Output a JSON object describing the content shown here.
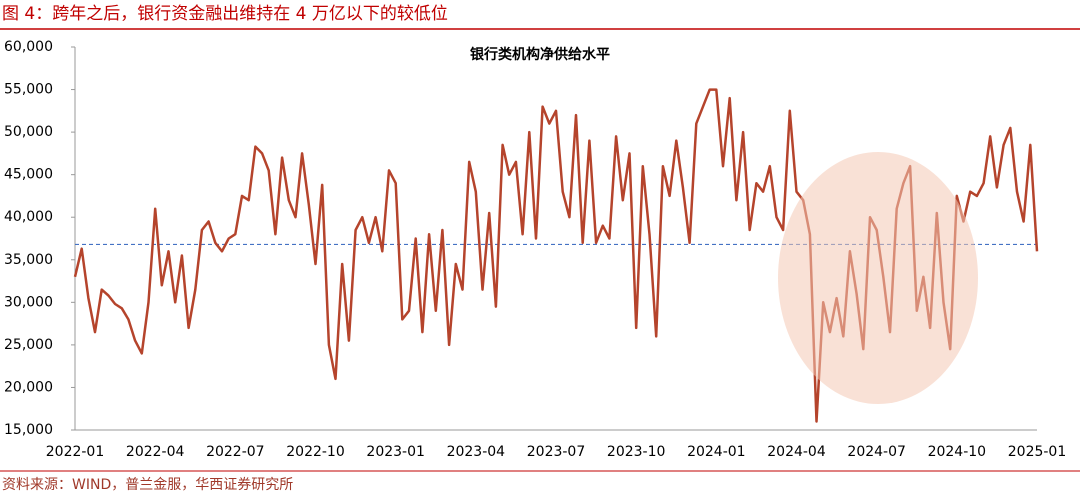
{
  "figure_title": "图 4：跨年之后，银行资金融出维持在 4 万亿以下的较低位",
  "source": "资料来源：WIND，普兰金服，华西证券研究所",
  "chart_data": {
    "type": "line",
    "title": "银行类机构净供给水平",
    "categories": [
      "2022-01",
      null,
      null,
      null,
      null,
      null,
      null,
      null,
      null,
      null,
      null,
      null,
      "2022-04",
      null,
      null,
      null,
      null,
      null,
      null,
      null,
      null,
      null,
      null,
      null,
      "2022-07",
      null,
      null,
      null,
      null,
      null,
      null,
      null,
      null,
      null,
      null,
      null,
      "2022-10",
      null,
      null,
      null,
      null,
      null,
      null,
      null,
      null,
      null,
      null,
      null,
      "2023-01",
      null,
      null,
      null,
      null,
      null,
      null,
      null,
      null,
      null,
      null,
      null,
      "2023-04",
      null,
      null,
      null,
      null,
      null,
      null,
      null,
      null,
      null,
      null,
      null,
      "2023-07",
      null,
      null,
      null,
      null,
      null,
      null,
      null,
      null,
      null,
      null,
      null,
      "2023-10",
      null,
      null,
      null,
      null,
      null,
      null,
      null,
      null,
      null,
      null,
      null,
      "2024-01",
      null,
      null,
      null,
      null,
      null,
      null,
      null,
      null,
      null,
      null,
      null,
      "2024-04",
      null,
      null,
      null,
      null,
      null,
      null,
      null,
      null,
      null,
      null,
      null,
      "2024-07",
      null,
      null,
      null,
      null,
      null,
      null,
      null,
      null,
      null,
      null,
      null,
      "2024-10",
      null,
      null,
      null,
      null,
      null,
      null,
      null,
      null,
      null,
      null,
      null,
      "2025-01"
    ],
    "values": [
      33000,
      36300,
      30500,
      26500,
      31500,
      30800,
      29800,
      29300,
      28000,
      25500,
      24000,
      30000,
      41000,
      32000,
      36000,
      30000,
      35500,
      27000,
      31500,
      38500,
      39500,
      37000,
      36000,
      37500,
      38000,
      42500,
      42000,
      48300,
      47500,
      45500,
      38000,
      47000,
      42000,
      40000,
      47500,
      41500,
      34500,
      43800,
      25000,
      21000,
      34500,
      25500,
      38500,
      40000,
      37000,
      40000,
      36000,
      45500,
      44000,
      28000,
      29000,
      37500,
      26500,
      38000,
      29000,
      38500,
      25000,
      34500,
      31500,
      46500,
      43000,
      31500,
      40500,
      29500,
      48500,
      45000,
      46500,
      38000,
      50000,
      37500,
      53000,
      51000,
      52500,
      43000,
      40000,
      52000,
      37000,
      49000,
      37000,
      39000,
      37500,
      49500,
      42000,
      47500,
      27000,
      46000,
      38000,
      26000,
      46000,
      42500,
      49000,
      43500,
      37000,
      51000,
      53000,
      55000,
      55000,
      46000,
      54000,
      42000,
      50000,
      38500,
      44000,
      43000,
      46000,
      40000,
      38500,
      52500,
      43000,
      42000,
      38000,
      16000,
      30000,
      26500,
      30500,
      26000,
      36000,
      31000,
      24500,
      40000,
      38500,
      33000,
      26500,
      41000,
      44000,
      46000,
      29000,
      33000,
      27000,
      40500,
      30000,
      24500,
      42500,
      39500,
      43000,
      42500,
      44000,
      49500,
      43500,
      48500,
      50500,
      43000,
      39500,
      48500,
      36000
    ],
    "color": "#b5442c",
    "reference_line": 36800,
    "reference_color": "#4472c4",
    "ylim": [
      15000,
      60000
    ],
    "yticks": [
      {
        "value": 15000,
        "label": "15,000"
      },
      {
        "value": 20000,
        "label": "20,000"
      },
      {
        "value": 25000,
        "label": "25,000"
      },
      {
        "value": 30000,
        "label": "30,000"
      },
      {
        "value": 35000,
        "label": "35,000"
      },
      {
        "value": 40000,
        "label": "40,000"
      },
      {
        "value": 45000,
        "label": "45,000"
      },
      {
        "value": 50000,
        "label": "50,000"
      },
      {
        "value": 55000,
        "label": "55,000"
      },
      {
        "value": 60000,
        "label": "60,000"
      }
    ],
    "grid": false
  }
}
